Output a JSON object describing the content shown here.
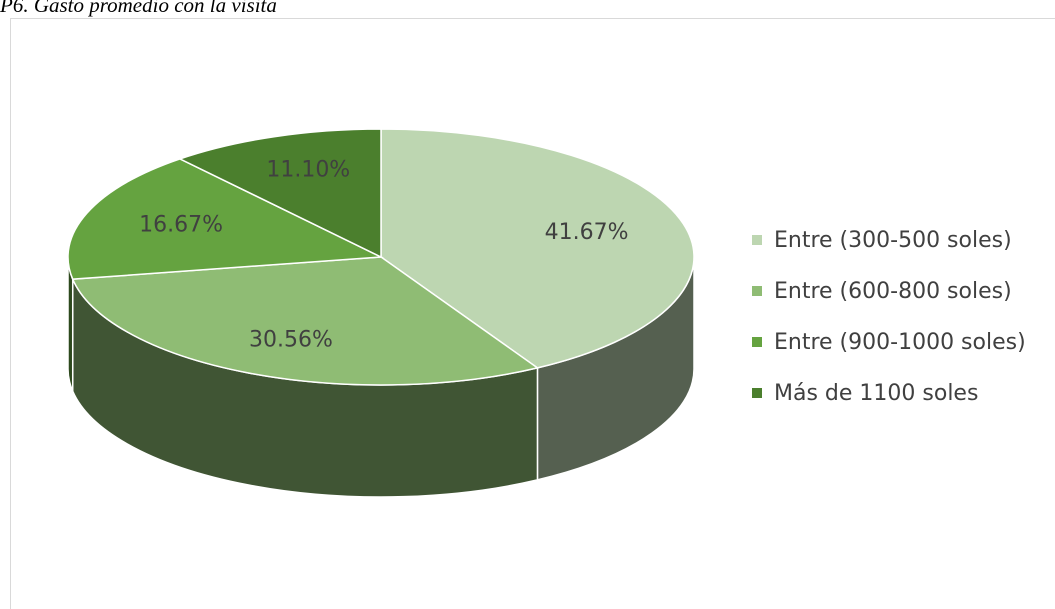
{
  "chart_data": {
    "type": "pie3d",
    "title": "P6. Gasto promedio con la visita",
    "categories": [
      "Entre (300-500 soles)",
      "Entre (600-800 soles)",
      "Entre (900-1000 soles)",
      "Más de 1100 soles"
    ],
    "values": [
      41.67,
      30.56,
      16.67,
      11.1
    ],
    "value_labels": [
      "41.67%",
      "30.56%",
      "16.67%",
      "11.10%"
    ],
    "colors": [
      "#bdd6b1",
      "#8fbc74",
      "#65a340",
      "#4b7f2d"
    ],
    "legend": "right"
  }
}
